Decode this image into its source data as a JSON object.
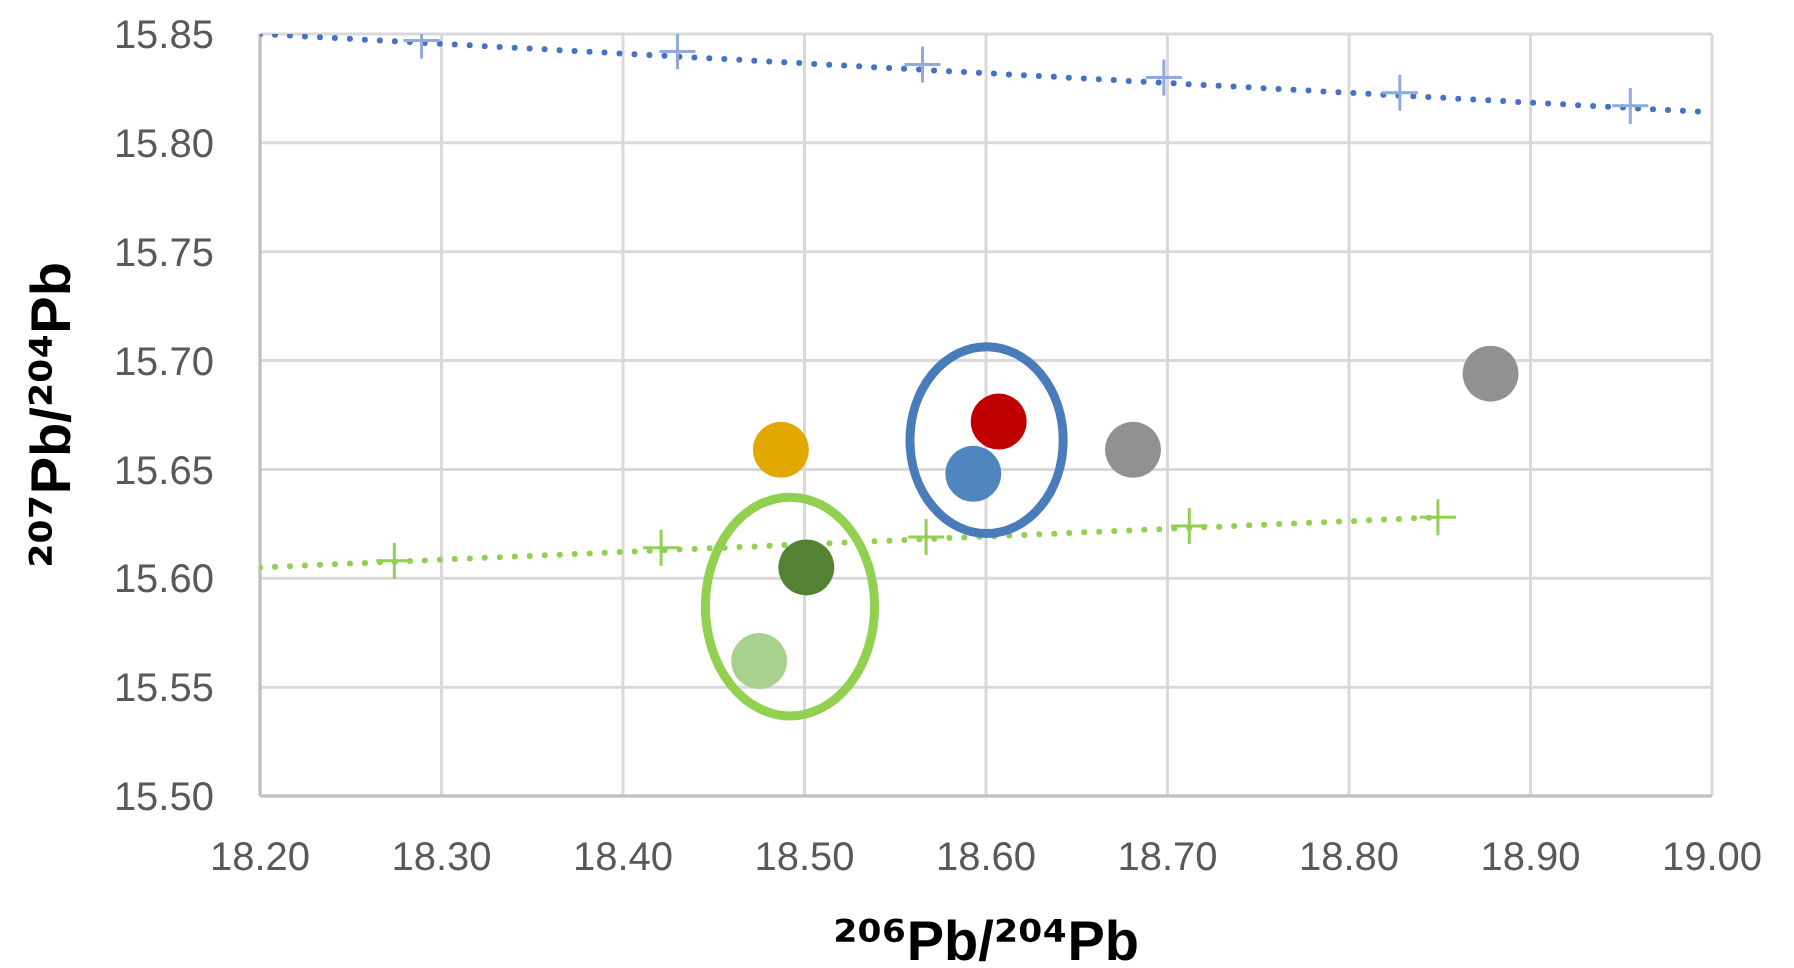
{
  "chart_data": {
    "type": "scatter",
    "xlabel": "²⁰⁶Pb/²⁰⁴Pb",
    "ylabel": "²⁰⁷Pb/²⁰⁴Pb",
    "xlim": [
      18.2,
      19.0
    ],
    "xticks": [
      {
        "value": 18.2,
        "label": "18.20"
      },
      {
        "value": 18.3,
        "label": "18.30"
      },
      {
        "value": 18.4,
        "label": "18.40"
      },
      {
        "value": 18.5,
        "label": "18.50"
      },
      {
        "value": 18.6,
        "label": "18.60"
      },
      {
        "value": 18.7,
        "label": "18.70"
      },
      {
        "value": 18.8,
        "label": "18.80"
      },
      {
        "value": 18.9,
        "label": "18.90"
      },
      {
        "value": 19.0,
        "label": "19.00"
      }
    ],
    "ylim": [
      15.5,
      15.85
    ],
    "yticks": [
      {
        "value": 15.5,
        "label": "15.50"
      },
      {
        "value": 15.55,
        "label": "15.55"
      },
      {
        "value": 15.6,
        "label": "15.60"
      },
      {
        "value": 15.65,
        "label": "15.65"
      },
      {
        "value": 15.7,
        "label": "15.70"
      },
      {
        "value": 15.75,
        "label": "15.75"
      },
      {
        "value": 15.8,
        "label": "15.80"
      },
      {
        "value": 15.85,
        "label": "15.85"
      }
    ],
    "grid": true,
    "series": [
      {
        "type": "line",
        "color": "#4472c4",
        "line_style": "dotted",
        "marker": "none",
        "x": [
          18.2,
          19.0
        ],
        "values": [
          15.85,
          15.814
        ]
      },
      {
        "color": "#8faadc",
        "marker": "cross",
        "x": [
          18.289,
          18.43,
          18.565,
          18.698,
          18.828,
          18.955
        ],
        "values": [
          15.847,
          15.842,
          15.836,
          15.83,
          15.823,
          15.817
        ]
      },
      {
        "type": "line",
        "color": "#92d050",
        "line_style": "dotted",
        "marker": "none",
        "x": [
          18.2,
          18.849
        ],
        "values": [
          15.605,
          15.628
        ]
      },
      {
        "color": "#92d050",
        "marker": "cross",
        "x": [
          18.274,
          18.421,
          18.567,
          18.712,
          18.849
        ],
        "values": [
          15.608,
          15.614,
          15.619,
          15.624,
          15.628
        ]
      },
      {
        "marker": "circle",
        "colors": [
          "#e2a800",
          "#c00000",
          "#4f86bf",
          "#919191",
          "#919191",
          "#548235",
          "#a9d18e"
        ],
        "x": [
          18.487,
          18.607,
          18.593,
          18.681,
          18.878,
          18.501,
          18.475
        ],
        "values": [
          15.659,
          15.672,
          15.648,
          15.659,
          15.694,
          15.605,
          15.562
        ]
      }
    ]
  }
}
